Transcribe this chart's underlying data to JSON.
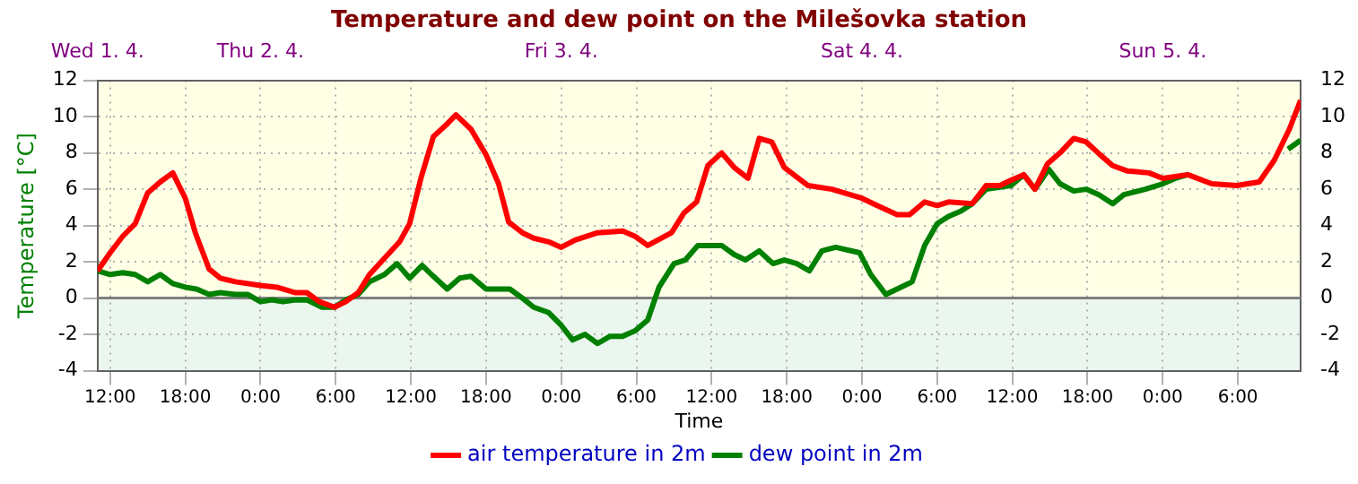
{
  "chart_data": {
    "type": "line",
    "title": "Temperature and dew point on the Milešovka station",
    "xlabel": "Time",
    "ylabel": "Temperature [°C]",
    "xlim": [
      "--04-01T11:00",
      "--04-05T11:00"
    ],
    "ylim": [
      -4,
      12
    ],
    "y2lim": [
      -4,
      12
    ],
    "xticks": [
      {
        "value": "--04-01T12:00",
        "label": "12:00"
      },
      {
        "value": "--04-01T18:00",
        "label": "18:00"
      },
      {
        "value": "--04-02T00:00",
        "label": "0:00"
      },
      {
        "value": "--04-02T06:00",
        "label": "6:00"
      },
      {
        "value": "--04-02T12:00",
        "label": "12:00"
      },
      {
        "value": "--04-02T18:00",
        "label": "18:00"
      },
      {
        "value": "--04-03T00:00",
        "label": "0:00"
      },
      {
        "value": "--04-03T06:00",
        "label": "6:00"
      },
      {
        "value": "--04-03T12:00",
        "label": "12:00"
      },
      {
        "value": "--04-03T18:00",
        "label": "18:00"
      },
      {
        "value": "--04-04T00:00",
        "label": "0:00"
      },
      {
        "value": "--04-04T06:00",
        "label": "6:00"
      },
      {
        "value": "--04-04T12:00",
        "label": "12:00"
      },
      {
        "value": "--04-04T18:00",
        "label": "18:00"
      },
      {
        "value": "--04-05T00:00",
        "label": "0:00"
      },
      {
        "value": "--04-05T06:00",
        "label": "6:00"
      }
    ],
    "x2lim": [
      "--04-01T11:00",
      "--04-05T11:00"
    ],
    "x2ticks": [
      {
        "value": "--04-01T11:00",
        "label": "Wed 1. 4."
      },
      {
        "value": "--04-02T00:00",
        "label": "Thu 2. 4."
      },
      {
        "value": "--04-03T00:00",
        "label": "Fri 3. 4."
      },
      {
        "value": "--04-04T00:00",
        "label": "Sat 4. 4."
      },
      {
        "value": "--04-05T00:00",
        "label": "Sun 5. 4."
      }
    ],
    "yticks": [
      -4,
      -2,
      0,
      2,
      4,
      6,
      8,
      10,
      12
    ],
    "y2ticks": [
      -4,
      -2,
      0,
      2,
      4,
      6,
      8,
      10,
      12
    ],
    "grid": true,
    "legend": "bottom",
    "marker": "none",
    "line_style": "solid",
    "bands": [
      {
        "axis": "y",
        "from": 0,
        "to": 12,
        "color": "#ffffe6"
      },
      {
        "axis": "y",
        "from": -4,
        "to": 0,
        "color": "#eaf6ee"
      }
    ],
    "ref_lines": [
      {
        "axis": "y",
        "value": 0,
        "color": "#808080"
      }
    ],
    "series": [
      {
        "name": "air temperature in 2m",
        "color": "#ff0000",
        "x": [
          "--04-01T11:00",
          "--04-01T12:00",
          "--04-01T13:00",
          "--04-01T14:00",
          "--04-01T15:00",
          "--04-01T16:00",
          "--04-01T17:00",
          "--04-01T18:00",
          "--04-01T18:48",
          "--04-01T19:54",
          "--04-01T20:48",
          "--04-01T22:00",
          "--04-02T00:00",
          "--04-02T01:18",
          "--04-02T02:48",
          "--04-02T03:42",
          "--04-02T04:42",
          "--04-02T05:54",
          "--04-02T06:48",
          "--04-02T07:48",
          "--04-02T08:42",
          "--04-02T09:54",
          "--04-02T11:06",
          "--04-02T11:54",
          "--04-02T12:48",
          "--04-02T13:48",
          "--04-02T14:54",
          "--04-02T15:36",
          "--04-02T16:48",
          "--04-02T18:00",
          "--04-02T19:00",
          "--04-02T19:48",
          "--04-02T20:54",
          "--04-02T21:48",
          "--04-02T23:00",
          "--04-03T00:00",
          "--04-03T01:06",
          "--04-03T02:54",
          "--04-03T04:54",
          "--04-03T05:54",
          "--04-03T06:54",
          "--04-03T08:48",
          "--04-03T09:48",
          "--04-03T10:48",
          "--04-03T11:42",
          "--04-03T12:48",
          "--04-03T13:48",
          "--04-03T14:54",
          "--04-03T15:48",
          "--04-03T16:48",
          "--04-03T17:48",
          "--04-03T19:42",
          "--04-03T21:36",
          "--04-04T00:00",
          "--04-04T01:12",
          "--04-04T02:48",
          "--04-04T03:48",
          "--04-04T05:00",
          "--04-04T06:00",
          "--04-04T06:54",
          "--04-04T08:48",
          "--04-04T09:54",
          "--04-04T11:00",
          "--04-04T11:54",
          "--04-04T12:54",
          "--04-04T13:48",
          "--04-04T14:48",
          "--04-04T15:48",
          "--04-04T16:54",
          "--04-04T17:54",
          "--04-04T19:00",
          "--04-04T20:00",
          "--04-04T21:12",
          "--04-04T22:54",
          "--04-05T00:00",
          "--04-05T02:00",
          "--04-05T03:54",
          "--04-05T05:54",
          "--04-05T07:42",
          "--04-05T08:54",
          "--04-05T10:06",
          "--04-05T11:00"
        ],
        "values": [
          1.5,
          2.5,
          3.4,
          4.1,
          5.8,
          6.4,
          6.9,
          5.5,
          3.6,
          1.6,
          1.1,
          0.9,
          0.7,
          0.6,
          0.3,
          0.3,
          -0.2,
          -0.5,
          -0.2,
          0.3,
          1.3,
          2.2,
          3.1,
          4.1,
          6.6,
          8.9,
          9.6,
          10.1,
          9.3,
          7.9,
          6.3,
          4.2,
          3.6,
          3.3,
          3.1,
          2.8,
          3.2,
          3.6,
          3.7,
          3.4,
          2.9,
          3.6,
          4.7,
          5.3,
          7.3,
          8,
          7.2,
          6.6,
          8.8,
          8.6,
          7.2,
          6.2,
          6,
          5.5,
          5.1,
          4.6,
          4.6,
          5.3,
          5.1,
          5.3,
          5.2,
          6.2,
          6.2,
          6.5,
          6.8,
          6,
          7.4,
          8,
          8.8,
          8.6,
          7.9,
          7.3,
          7,
          6.9,
          6.6,
          6.8,
          6.3,
          6.2,
          6.4,
          7.6,
          9.3,
          10.9
        ]
      },
      {
        "name": "dew point in 2m",
        "color": "#008000",
        "x": [
          "--04-01T11:00",
          "--04-01T12:00",
          "--04-01T13:00",
          "--04-01T14:00",
          "--04-01T15:00",
          "--04-01T16:00",
          "--04-01T17:00",
          "--04-01T18:00",
          "--04-01T18:54",
          "--04-01T19:54",
          "--04-01T20:48",
          "--04-01T22:00",
          "--04-01T23:00",
          "--04-02T00:00",
          "--04-02T00:54",
          "--04-02T01:48",
          "--04-02T02:48",
          "--04-02T03:42",
          "--04-02T04:54",
          "--04-02T05:54",
          "--04-02T06:48",
          "--04-02T07:48",
          "--04-02T08:42",
          "--04-02T09:54",
          "--04-02T10:54",
          "--04-02T11:54",
          "--04-02T12:54",
          "--04-02T13:48",
          "--04-02T14:54",
          "--04-02T15:54",
          "--04-02T16:48",
          "--04-02T18:00",
          "--04-02T19:54",
          "--04-02T20:54",
          "--04-02T21:48",
          "--04-02T23:00",
          "--04-03T00:00",
          "--04-03T00:54",
          "--04-03T01:54",
          "--04-03T02:54",
          "--04-03T03:54",
          "--04-03T04:54",
          "--04-03T05:54",
          "--04-03T06:54",
          "--04-03T07:48",
          "--04-03T09:00",
          "--04-03T09:54",
          "--04-03T10:54",
          "--04-03T11:54",
          "--04-03T12:48",
          "--04-03T13:48",
          "--04-03T14:42",
          "--04-03T15:48",
          "--04-03T16:54",
          "--04-03T17:48",
          "--04-03T18:48",
          "--04-03T19:48",
          "--04-03T20:48",
          "--04-03T21:54",
          "--04-03T23:48",
          "--04-04T00:42",
          "--04-04T01:54",
          "--04-04T03:06",
          "--04-04T04:00",
          "--04-04T05:00",
          "--04-04T06:00",
          "--04-04T06:54",
          "--04-04T07:54",
          "--04-04T08:48",
          "--04-04T09:54",
          "--04-04T11:54",
          "--04-04T12:54",
          "--04-04T13:48",
          "--04-04T14:54",
          "--04-04T15:48",
          "--04-04T16:54",
          "--04-04T17:54",
          "--04-04T18:54",
          "--04-04T20:00",
          "--04-04T20:54",
          "--04-04T22:36",
          "--04-05T00:00",
          "--04-05T01:00",
          "--04-05T02:00",
          "--04-05T03:54",
          "--04-05T05:54",
          "--04-05T07:42",
          "--04-05T08:54",
          "--04-05T10:00",
          "--04-05T11:00"
        ],
        "values": [
          1.5,
          1.3,
          1.4,
          1.3,
          0.9,
          1.3,
          0.8,
          0.6,
          0.5,
          0.2,
          0.3,
          0.2,
          0.2,
          -0.2,
          -0.1,
          -0.2,
          -0.1,
          -0.1,
          -0.5,
          -0.5,
          -0.1,
          0.2,
          0.9,
          1.3,
          1.9,
          1.1,
          1.8,
          1.2,
          0.5,
          1.1,
          1.2,
          0.5,
          0.5,
          0,
          -0.5,
          -0.8,
          -1.5,
          -2.3,
          -2,
          -2.5,
          -2.1,
          -2.1,
          -1.8,
          -1.2,
          0.6,
          1.9,
          2.1,
          2.9,
          2.9,
          2.9,
          2.4,
          2.1,
          2.6,
          1.9,
          2.1,
          1.9,
          1.5,
          2.6,
          2.8,
          2.5,
          1.3,
          0.2,
          0.6,
          0.9,
          2.9,
          4.1,
          4.5,
          4.8,
          5.2,
          6,
          6.2,
          6.8,
          6,
          7.1,
          6.3,
          5.9,
          6,
          5.7,
          5.2,
          5.7,
          6,
          6.3,
          6.6,
          6.8,
          null,
          null,
          null,
          null,
          8.2,
          8.7
        ]
      }
    ]
  }
}
